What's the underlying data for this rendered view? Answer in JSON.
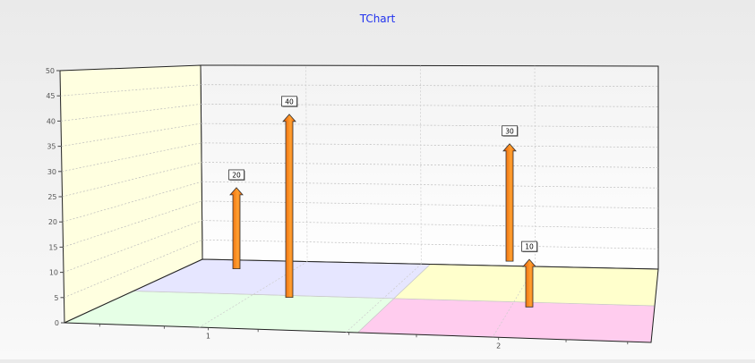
{
  "chart_data": {
    "type": "bar",
    "title": "TChart",
    "categories": [
      "1",
      "2"
    ],
    "ylim": [
      0,
      50
    ],
    "yticks": [
      0,
      5,
      10,
      15,
      20,
      25,
      30,
      35,
      40,
      45,
      50
    ],
    "grid": true,
    "legend": "none",
    "series": [
      {
        "values": [
          20,
          30
        ],
        "labels": [
          "20",
          "30"
        ]
      },
      {
        "values": [
          40,
          10
        ],
        "labels": [
          "40",
          "10"
        ]
      }
    ]
  },
  "colors": {
    "title": "#2233ee",
    "left_wall": "#ffffe0",
    "back_wall_top": "#f3f3f3",
    "back_wall_bottom": "#ffffff",
    "floor_tiles": [
      "#e6ffe6",
      "#e6e6ff",
      "#ffccee",
      "#ffffcc"
    ],
    "arrow_light": "#ffa030",
    "arrow_dark": "#e85a00",
    "arrow_stroke": "#333333"
  }
}
